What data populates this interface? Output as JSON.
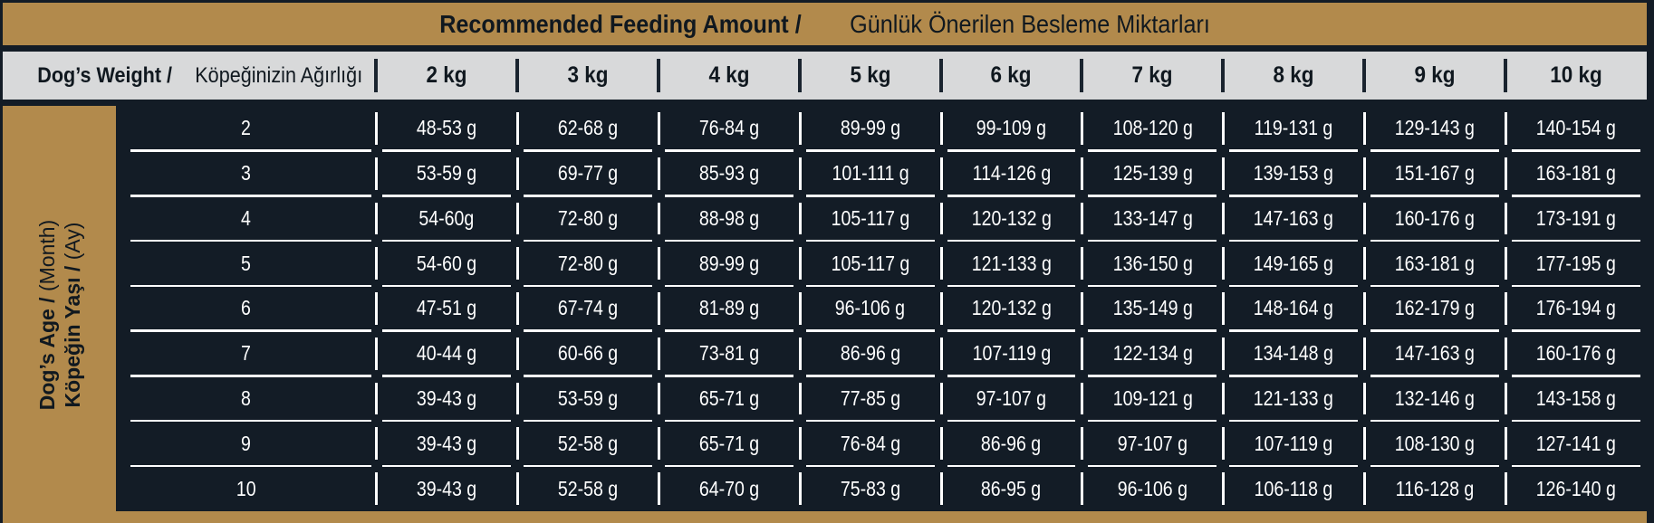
{
  "title": {
    "en_bold": "Recommended Feeding Amount /",
    "tr_regular": "Günlük Önerilen Besleme Miktarları"
  },
  "weight_header": {
    "label_bold": "Dog’s Weight /",
    "label_regular": "Köpeğinizin Ağırlığı",
    "columns": [
      "2 kg",
      "3 kg",
      "4 kg",
      "5 kg",
      "6 kg",
      "7 kg",
      "8 kg",
      "9 kg",
      "10 kg"
    ]
  },
  "age_sidebar": {
    "en_bold": "Dog’s Age /",
    "en_light": "(Month)",
    "tr_bold": "Köpeğin Yaşı /",
    "tr_light": "(Ay)"
  },
  "table": {
    "age_column_unit": "month",
    "rows": [
      {
        "age": "2",
        "values": [
          "48-53 g",
          "62-68 g",
          "76-84 g",
          "89-99 g",
          "99-109 g",
          "108-120 g",
          "119-131 g",
          "129-143 g",
          "140-154 g"
        ]
      },
      {
        "age": "3",
        "values": [
          "53-59 g",
          "69-77 g",
          "85-93 g",
          "101-111 g",
          "114-126 g",
          "125-139 g",
          "139-153 g",
          "151-167 g",
          "163-181 g"
        ]
      },
      {
        "age": "4",
        "values": [
          "54-60g",
          "72-80 g",
          "88-98 g",
          "105-117 g",
          "120-132 g",
          "133-147 g",
          "147-163 g",
          "160-176 g",
          "173-191 g"
        ]
      },
      {
        "age": "5",
        "values": [
          "54-60 g",
          "72-80 g",
          "89-99 g",
          "105-117 g",
          "121-133 g",
          "136-150 g",
          "149-165 g",
          "163-181 g",
          "177-195 g"
        ]
      },
      {
        "age": "6",
        "values": [
          "47-51 g",
          "67-74 g",
          "81-89 g",
          "96-106 g",
          "120-132 g",
          "135-149 g",
          "148-164 g",
          "162-179 g",
          "176-194 g"
        ]
      },
      {
        "age": "7",
        "values": [
          "40-44 g",
          "60-66 g",
          "73-81 g",
          "86-96 g",
          "107-119 g",
          "122-134 g",
          "134-148 g",
          "147-163 g",
          "160-176 g"
        ]
      },
      {
        "age": "8",
        "values": [
          "39-43 g",
          "53-59 g",
          "65-71 g",
          "77-85 g",
          "97-107 g",
          "109-121 g",
          "121-133 g",
          "132-146 g",
          "143-158 g"
        ]
      },
      {
        "age": "9",
        "values": [
          "39-43 g",
          "52-58 g",
          "65-71 g",
          "76-84 g",
          "86-96 g",
          "97-107 g",
          "107-119 g",
          "108-130 g",
          "127-141 g"
        ]
      },
      {
        "age": "10",
        "values": [
          "39-43 g",
          "52-58 g",
          "64-70 g",
          "75-83 g",
          "86-95 g",
          "96-106 g",
          "106-118 g",
          "116-128 g",
          "126-140 g"
        ]
      }
    ]
  },
  "colors": {
    "gold": "#b28a4c",
    "dark_navy": "#131c26",
    "header_gray": "#d8d9da",
    "body_text": "#ffffff",
    "dark_text": "#10181f"
  }
}
